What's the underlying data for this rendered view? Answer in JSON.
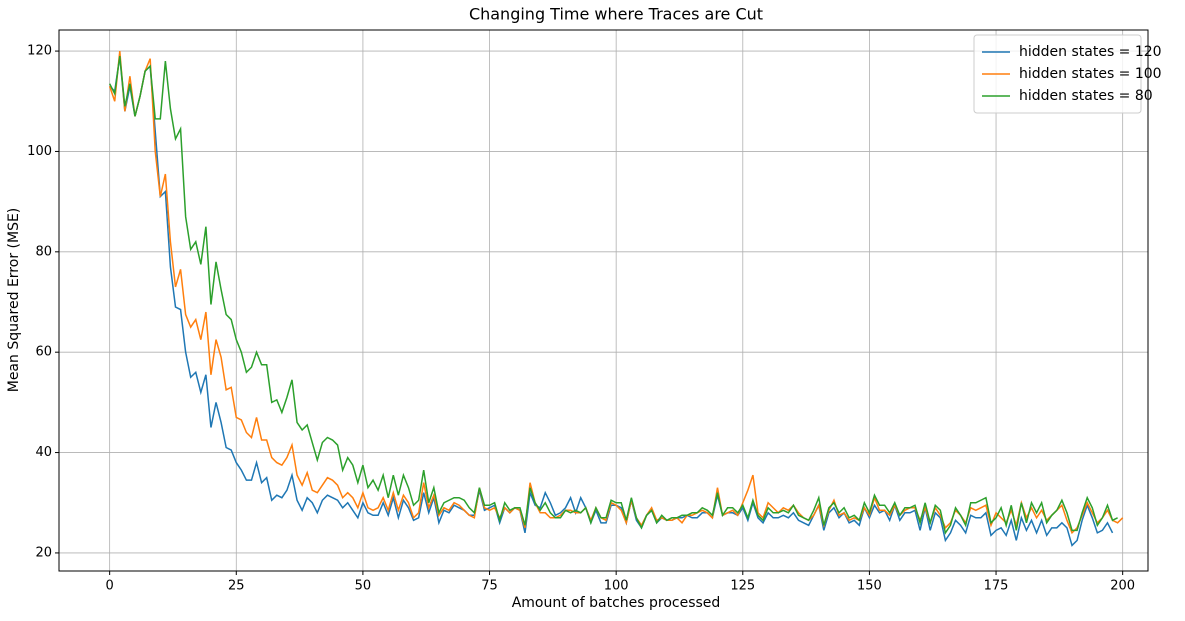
{
  "chart_data": {
    "type": "line",
    "title": "Changing Time where Traces are Cut",
    "x_label": "Amount of batches processed",
    "y_label": "Mean Squared Error (MSE)",
    "x": [
      0,
      1,
      2,
      3,
      4,
      5,
      6,
      7,
      8,
      9,
      10,
      11,
      12,
      13,
      14,
      15,
      16,
      17,
      18,
      19,
      20,
      21,
      22,
      23,
      24,
      25,
      26,
      27,
      28,
      29,
      30,
      31,
      32,
      33,
      34,
      35,
      36,
      37,
      38,
      39,
      40,
      41,
      42,
      43,
      44,
      45,
      46,
      47,
      48,
      49,
      50,
      51,
      52,
      53,
      54,
      55,
      56,
      57,
      58,
      59,
      60,
      61,
      62,
      63,
      64,
      65,
      66,
      67,
      68,
      69,
      70,
      71,
      72,
      73,
      74,
      75,
      76,
      77,
      78,
      79,
      80,
      81,
      82,
      83,
      84,
      85,
      86,
      87,
      88,
      89,
      90,
      91,
      92,
      93,
      94,
      95,
      96,
      97,
      98,
      99,
      100,
      101,
      102,
      103,
      104,
      105,
      106,
      107,
      108,
      109,
      110,
      111,
      112,
      113,
      114,
      115,
      116,
      117,
      118,
      119,
      120,
      121,
      122,
      123,
      124,
      125,
      126,
      127,
      128,
      129,
      130,
      131,
      132,
      133,
      134,
      135,
      136,
      137,
      138,
      139,
      140,
      141,
      142,
      143,
      144,
      145,
      146,
      147,
      148,
      149,
      150,
      151,
      152,
      153,
      154,
      155,
      156,
      157,
      158,
      159,
      160,
      161,
      162,
      163,
      164,
      165,
      166,
      167,
      168,
      169,
      170,
      171,
      172,
      173,
      174,
      175,
      176,
      177,
      178,
      179,
      180,
      181,
      182,
      183,
      184,
      185,
      186,
      187,
      188,
      189,
      190,
      191,
      192,
      193,
      194,
      195,
      196,
      197,
      198,
      199,
      200
    ],
    "series": [
      {
        "name": "hidden states = 120",
        "color": "#1f77b4",
        "values": [
          113,
          112,
          119,
          108,
          113,
          107,
          111,
          116,
          117,
          104,
          91,
          92,
          77,
          69,
          68.5,
          60,
          55,
          56,
          52,
          55.5,
          45,
          50,
          46,
          41,
          40.5,
          38,
          36.5,
          34.5,
          34.5,
          38,
          34,
          35,
          30.5,
          31.5,
          31,
          32.5,
          35.5,
          30.5,
          28.5,
          31,
          30,
          28,
          30.5,
          31.5,
          31,
          30.5,
          29,
          30,
          28.5,
          27,
          30,
          28,
          27.5,
          27.5,
          30,
          27.5,
          31,
          27,
          30.5,
          29,
          26.5,
          27,
          32,
          28,
          31,
          26,
          28.5,
          28,
          29.5,
          29,
          28.5,
          27.5,
          27.5,
          32.5,
          28.5,
          29,
          29.5,
          26,
          29,
          28,
          29,
          28.5,
          24,
          32,
          29.5,
          29,
          32,
          30,
          27.5,
          28,
          29,
          31,
          28,
          31,
          29,
          26,
          28.5,
          26,
          26,
          29.5,
          29.5,
          29,
          26,
          30.5,
          26.5,
          25,
          27.5,
          28.5,
          26,
          27,
          26.5,
          26.5,
          27,
          27,
          27.5,
          27,
          27,
          28,
          28,
          27,
          31.5,
          27.5,
          28,
          28,
          27.5,
          29,
          26.5,
          30,
          27,
          26,
          28,
          27,
          27,
          27.5,
          27,
          28,
          26.5,
          26,
          25.5,
          27.5,
          29.5,
          24.5,
          28,
          29,
          27,
          28,
          26,
          26.5,
          25.5,
          29,
          27,
          29.5,
          28,
          28.5,
          26.5,
          29.5,
          26.5,
          28,
          28,
          28.5,
          24.5,
          29,
          24.5,
          28,
          27,
          22.5,
          24,
          26.5,
          25.5,
          24,
          27.5,
          27,
          27,
          28,
          23.5,
          24.5,
          25,
          23.5,
          26.5,
          22.5,
          27,
          24.5,
          26.5,
          24,
          26.5,
          23.5,
          25,
          25,
          26,
          25,
          21.5,
          22.5,
          26.5,
          29.5,
          27,
          24,
          24.5,
          26,
          24,
          null,
          null
        ]
      },
      {
        "name": "hidden states = 100",
        "color": "#ff7f0e",
        "values": [
          113,
          110,
          120,
          108,
          115,
          107,
          111,
          116,
          118.5,
          100,
          91,
          95.5,
          82,
          73,
          76.5,
          67.5,
          65,
          66.5,
          62.5,
          68,
          55.5,
          62.5,
          59,
          52.5,
          53,
          47,
          46.5,
          44,
          43,
          47,
          42.5,
          42.5,
          39,
          38,
          37.5,
          39,
          41.5,
          35.5,
          33.5,
          36,
          32.5,
          32,
          33.5,
          35,
          34.5,
          33.5,
          31,
          32,
          31,
          29,
          32,
          29,
          28.5,
          29,
          31,
          28.5,
          32,
          28.5,
          31.5,
          30,
          27,
          28,
          34,
          29,
          31.5,
          27.5,
          29,
          28.5,
          30,
          29.5,
          28.5,
          27.5,
          27,
          33,
          29,
          28.5,
          29,
          27,
          29,
          28,
          29,
          28.5,
          25,
          34,
          30,
          28,
          28,
          27,
          27,
          27.5,
          28.5,
          28.5,
          28,
          28,
          29,
          26.5,
          29,
          27,
          26.5,
          30,
          29.5,
          28.5,
          26,
          30.5,
          27,
          25.5,
          27.5,
          29,
          26.5,
          27,
          26.5,
          26.5,
          27,
          26,
          27.5,
          27.5,
          28,
          28.5,
          28,
          27,
          33,
          27.5,
          28,
          28.5,
          27.5,
          30,
          32.5,
          35.5,
          28,
          27,
          30,
          29,
          28,
          29,
          28.5,
          29.5,
          28,
          27,
          26.5,
          27.5,
          29.5,
          25.5,
          28.5,
          30.5,
          27.5,
          28,
          26.5,
          27,
          26.5,
          29,
          27.5,
          31,
          28.5,
          28.5,
          27.5,
          29.5,
          27.5,
          28.5,
          29,
          29,
          26.5,
          29,
          26,
          29,
          27.5,
          25,
          26,
          28.5,
          27.5,
          26,
          29,
          28.5,
          29,
          29.5,
          25.5,
          28,
          27,
          26,
          28.5,
          25.5,
          30,
          27,
          29,
          27,
          28.5,
          26.5,
          27.5,
          28.5,
          29.5,
          26.5,
          24,
          25,
          27.5,
          30,
          28,
          26,
          27,
          28.5,
          26.5,
          26,
          27
        ]
      },
      {
        "name": "hidden states = 80",
        "color": "#2ca02c",
        "values": [
          113.5,
          111.5,
          119,
          109,
          113.5,
          107,
          111,
          116,
          117,
          106.5,
          106.5,
          118,
          108.5,
          102.5,
          104.5,
          87,
          80.5,
          82,
          77.5,
          85,
          69.5,
          78,
          72.5,
          67.5,
          66.5,
          62.5,
          60,
          56,
          57,
          60,
          57.5,
          57.5,
          50,
          50.5,
          48,
          51,
          54.5,
          46,
          44.5,
          45.5,
          42,
          38.5,
          42,
          43,
          42.5,
          41.5,
          36.5,
          39,
          37.5,
          34,
          37.5,
          33,
          34.5,
          32.5,
          35.5,
          31,
          35.5,
          31.5,
          35.5,
          33,
          29.5,
          30.5,
          36.5,
          30,
          33,
          28,
          30,
          30.5,
          31,
          31,
          30.5,
          29,
          28,
          33,
          29.5,
          29.5,
          30,
          26.5,
          30,
          28.5,
          29,
          29,
          25.5,
          33,
          30,
          28.5,
          30,
          28,
          27,
          27,
          28.5,
          28,
          28.5,
          28,
          29,
          26,
          29,
          27,
          27,
          30.5,
          30,
          30,
          26.5,
          31,
          27,
          25,
          27.5,
          28.5,
          26,
          27.5,
          26.5,
          27,
          27,
          27.5,
          27.5,
          28,
          28,
          29,
          28.5,
          27.5,
          32,
          27.5,
          29,
          29,
          28,
          29.5,
          27,
          30.5,
          27.5,
          26.5,
          29,
          28,
          28,
          28.5,
          28,
          29.5,
          27.5,
          27,
          26.5,
          28.5,
          31,
          25.5,
          29,
          30,
          28,
          29,
          27,
          27.5,
          26.5,
          30,
          28,
          31.5,
          29.5,
          29.5,
          28,
          30,
          27.5,
          29,
          29,
          29.5,
          26,
          30,
          26,
          29.5,
          28.5,
          24,
          25.5,
          29,
          27.5,
          25.5,
          30,
          30,
          30.5,
          31,
          26,
          27,
          29,
          25.5,
          29.5,
          24.5,
          30,
          26,
          30,
          28,
          30,
          26,
          27.5,
          28.5,
          30.5,
          28,
          24.5,
          24.5,
          28,
          31,
          29,
          25.5,
          27,
          29.5,
          26.5,
          27,
          null
        ]
      }
    ],
    "xlim": [
      -10,
      205
    ],
    "ylim": [
      16.4,
      124.2
    ],
    "xticks": [
      0,
      25,
      50,
      75,
      100,
      125,
      150,
      175,
      200
    ],
    "yticks": [
      20,
      40,
      60,
      80,
      100,
      120
    ],
    "grid": true,
    "legend": "upper right"
  }
}
